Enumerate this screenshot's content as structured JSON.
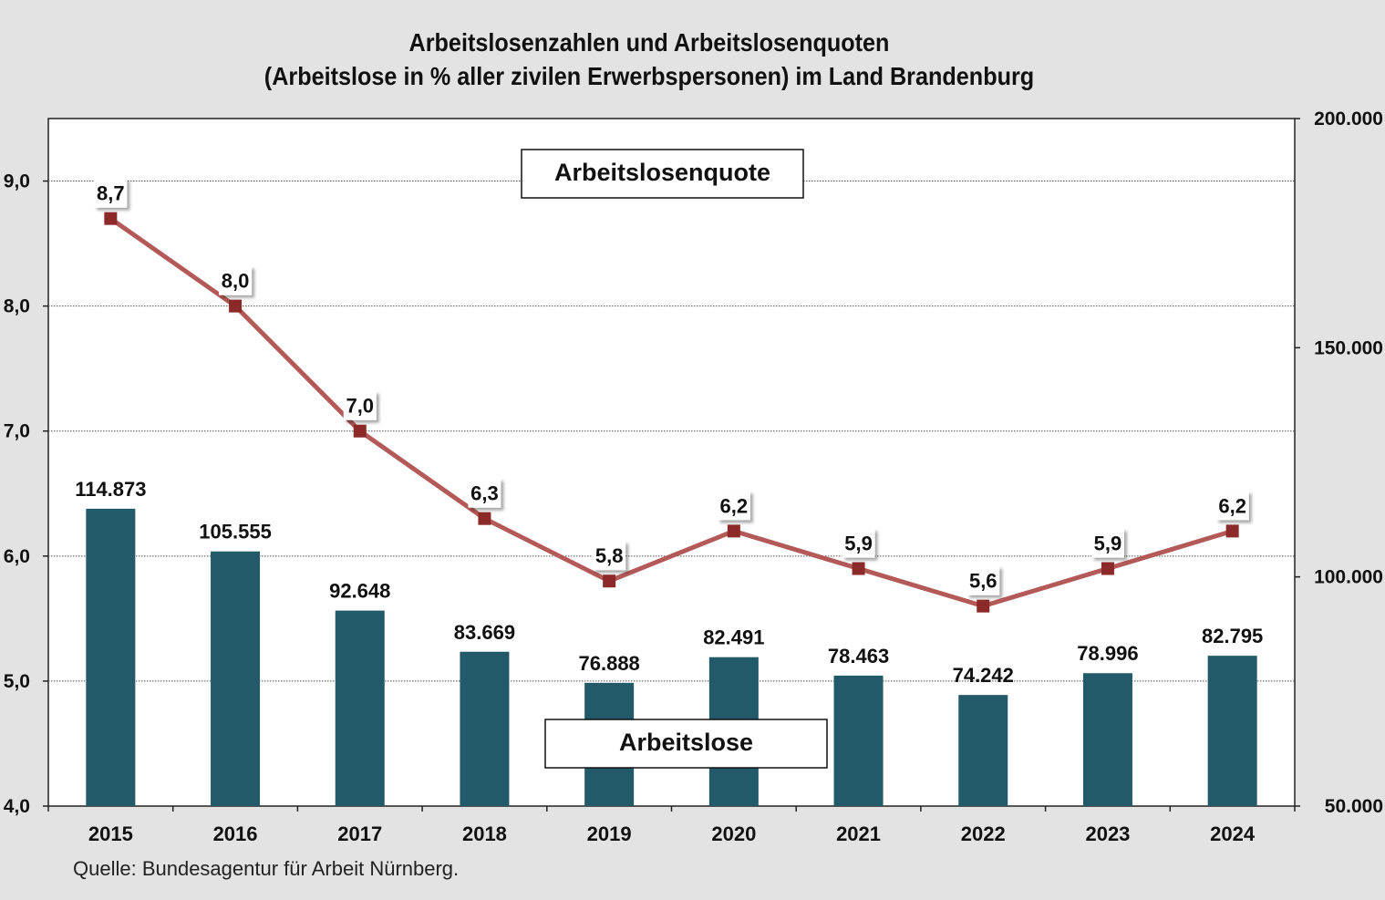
{
  "title_lines": [
    "Arbeitslosenzahlen und Arbeitslosenquoten",
    "(Arbeitslose in % aller zivilen Erwerbspersonen) im Land Brandenburg"
  ],
  "source": "Quelle: Bundesagentur für Arbeit Nürnberg.",
  "colors": {
    "bar": "#225a6a",
    "line": "#b35a58",
    "marker": "#8b2a28",
    "plot_bg": "#ffffff",
    "page_bg": "#e3e3e3"
  },
  "chart_data": {
    "type": "bar",
    "categories": [
      "2015",
      "2016",
      "2017",
      "2018",
      "2019",
      "2020",
      "2021",
      "2022",
      "2023",
      "2024"
    ],
    "grid": true,
    "y_left": {
      "min": 4.0,
      "max": 9.5,
      "ticks": [
        "4,0",
        "5,0",
        "6,0",
        "7,0",
        "8,0",
        "9,0"
      ],
      "tick_values": [
        4,
        5,
        6,
        7,
        8,
        9
      ]
    },
    "y_right": {
      "min": 50000,
      "max": 200000,
      "ticks": [
        "50.000",
        "100.000",
        "150.000",
        "200.000"
      ],
      "tick_values": [
        50000,
        100000,
        150000,
        200000
      ]
    },
    "series": [
      {
        "name": "Arbeitslose",
        "type": "bar",
        "axis": "right",
        "values": [
          114873,
          105555,
          92648,
          83669,
          76888,
          82491,
          78463,
          74242,
          78996,
          82795
        ],
        "labels": [
          "114.873",
          "105.555",
          "92.648",
          "83.669",
          "76.888",
          "82.491",
          "78.463",
          "74.242",
          "78.996",
          "82.795"
        ]
      },
      {
        "name": "Arbeitslosenquote",
        "type": "line",
        "axis": "left",
        "values": [
          8.7,
          8.0,
          7.0,
          6.3,
          5.8,
          6.2,
          5.9,
          5.6,
          5.9,
          6.2
        ],
        "labels": [
          "8,7",
          "8,0",
          "7,0",
          "6,3",
          "5,8",
          "6,2",
          "5,9",
          "5,6",
          "5,9",
          "6,2"
        ]
      }
    ]
  }
}
